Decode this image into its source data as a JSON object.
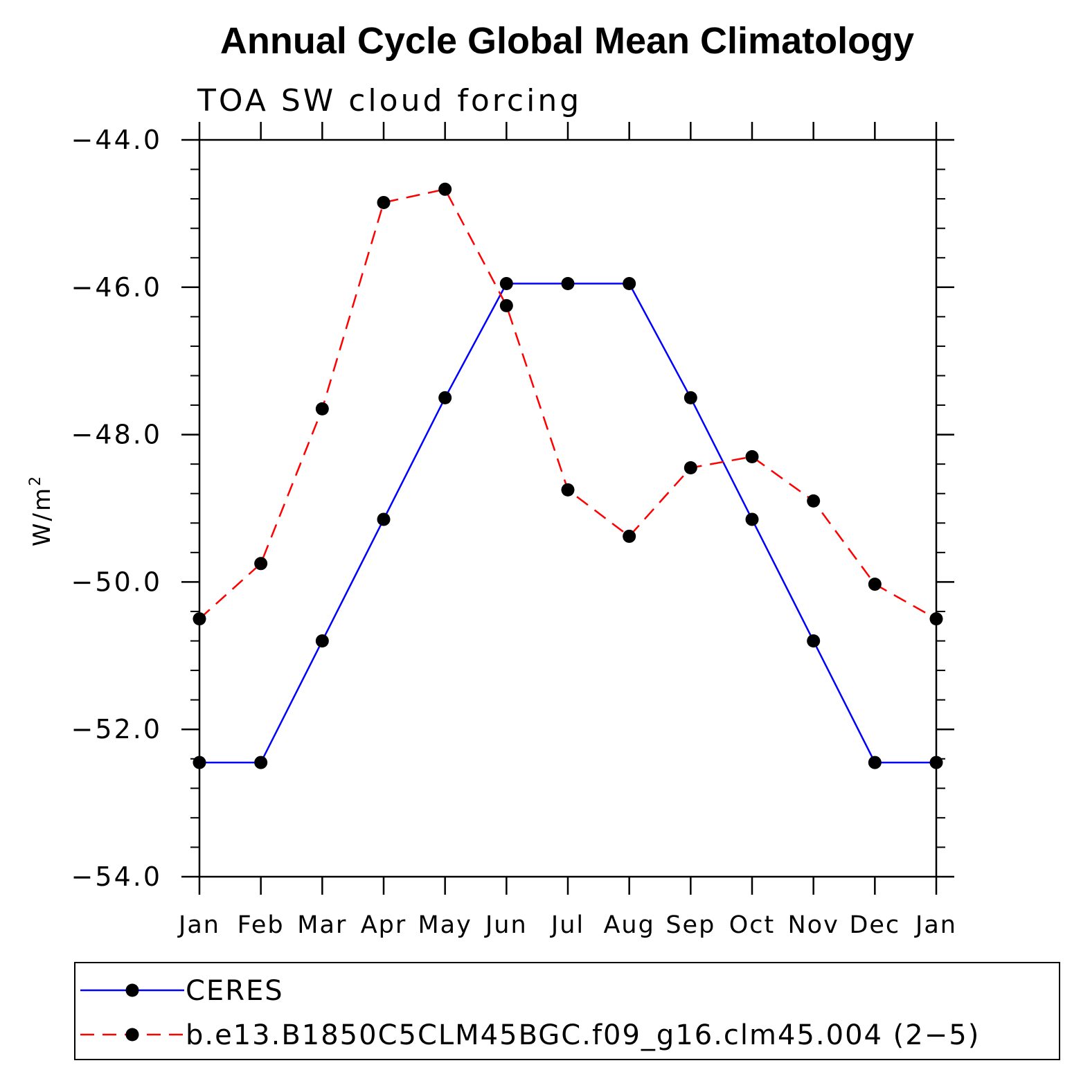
{
  "chart_data": {
    "type": "line",
    "title": "Annual Cycle Global Mean Climatology",
    "subtitle": "TOA SW cloud forcing",
    "ylabel": "W/m",
    "ylabel_superscript": "2",
    "ylim": [
      -54.0,
      -44.0
    ],
    "yticks": [
      -44.0,
      -46.0,
      -48.0,
      -50.0,
      -52.0,
      -54.0
    ],
    "ytick_labels": [
      "−44.0",
      "−46.0",
      "−48.0",
      "−50.0",
      "−52.0",
      "−54.0"
    ],
    "categories": [
      "Jan",
      "Feb",
      "Mar",
      "Apr",
      "May",
      "Jun",
      "Jul",
      "Aug",
      "Sep",
      "Oct",
      "Nov",
      "Dec",
      "Jan"
    ],
    "legend_position": "bottom",
    "series": [
      {
        "name": "CERES",
        "color": "#0000ff",
        "style": "solid",
        "values": [
          -52.45,
          -52.45,
          -50.8,
          -49.15,
          -47.5,
          -45.95,
          -45.95,
          -45.95,
          -47.5,
          -49.15,
          -50.8,
          -52.45,
          -52.45
        ]
      },
      {
        "name": "b.e13.B1850C5CLM45BGC.f09_g16.clm45.004 (2−5)",
        "color": "#ff0000",
        "style": "dashed",
        "values": [
          -50.5,
          -49.75,
          -47.65,
          -44.85,
          -44.67,
          -46.25,
          -48.75,
          -49.38,
          -48.45,
          -48.3,
          -48.9,
          -50.03,
          -50.5
        ]
      }
    ]
  }
}
